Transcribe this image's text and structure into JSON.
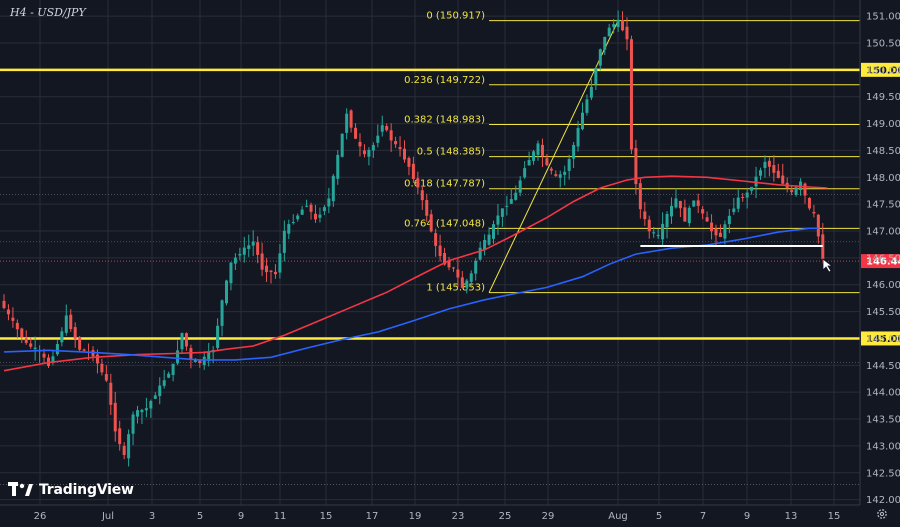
{
  "header": {
    "title": "H4 - USD/JPY"
  },
  "brand": {
    "name": "TradingView"
  },
  "icons": {
    "settings": "gear-icon",
    "cursor": "cursor-arrow-icon",
    "logo": "tradingview-logo-icon"
  },
  "colors": {
    "background": "#131722",
    "grid": "#2a2e39",
    "bull": "#26a69a",
    "bear": "#ef5350",
    "ma_red": "#f23645",
    "ma_blue": "#2962ff",
    "fib": "#f0e442",
    "level": "#ffeb3b",
    "axis_text": "#b2b5be",
    "price_tag": "#f23645"
  },
  "chart_data": {
    "type": "candlestick",
    "title": "H4 - USD/JPY",
    "ylim": [
      141.9,
      151.3
    ],
    "y_ticks": [
      "151.000",
      "150.500",
      "150.000",
      "149.500",
      "149.000",
      "148.500",
      "148.000",
      "147.500",
      "147.000",
      "146.500",
      "146.000",
      "145.500",
      "145.000",
      "144.500",
      "144.000",
      "143.500",
      "143.000",
      "142.500",
      "142.000"
    ],
    "x_ticks": [
      "26",
      "Jul",
      "3",
      "5",
      "9",
      "11",
      "15",
      "17",
      "19",
      "23",
      "25",
      "29",
      "Aug",
      "5",
      "7",
      "9",
      "13",
      "15"
    ],
    "horizontal_levels": [
      {
        "price": 150.0,
        "label": "150.000"
      },
      {
        "price": 145.0,
        "label": "145.000"
      }
    ],
    "fibonacci": {
      "high": 150.917,
      "low": 145.853,
      "levels": [
        {
          "ratio": "0",
          "price": "150.917"
        },
        {
          "ratio": "0.236",
          "price": "149.722"
        },
        {
          "ratio": "0.382",
          "price": "148.983"
        },
        {
          "ratio": "0.5",
          "price": "148.385"
        },
        {
          "ratio": "0.618",
          "price": "147.787"
        },
        {
          "ratio": "0.764",
          "price": "147.048"
        },
        {
          "ratio": "1",
          "price": "145.853"
        }
      ]
    },
    "last_price": {
      "value": 146.44,
      "label": "146.440"
    },
    "support_line": {
      "price": 146.72
    },
    "ma_red_path": [
      [
        0,
        144.4
      ],
      [
        10,
        144.55
      ],
      [
        20,
        144.65
      ],
      [
        30,
        144.7
      ],
      [
        38,
        144.72
      ],
      [
        45,
        144.74
      ],
      [
        50,
        144.8
      ],
      [
        56,
        144.86
      ],
      [
        63,
        145.06
      ],
      [
        70,
        145.3
      ],
      [
        78,
        145.58
      ],
      [
        86,
        145.86
      ],
      [
        94,
        146.2
      ],
      [
        100,
        146.45
      ],
      [
        108,
        146.65
      ],
      [
        114,
        146.9
      ],
      [
        122,
        147.25
      ],
      [
        128,
        147.55
      ],
      [
        134,
        147.8
      ],
      [
        140,
        147.95
      ],
      [
        144,
        148.0
      ],
      [
        150,
        148.02
      ],
      [
        158,
        148.0
      ],
      [
        166,
        147.93
      ],
      [
        174,
        147.86
      ],
      [
        181,
        147.82
      ],
      [
        185,
        147.8
      ]
    ],
    "ma_blue_path": [
      [
        0,
        144.75
      ],
      [
        10,
        144.78
      ],
      [
        20,
        144.74
      ],
      [
        28,
        144.7
      ],
      [
        36,
        144.65
      ],
      [
        44,
        144.6
      ],
      [
        52,
        144.6
      ],
      [
        60,
        144.65
      ],
      [
        68,
        144.82
      ],
      [
        76,
        144.98
      ],
      [
        84,
        145.12
      ],
      [
        92,
        145.33
      ],
      [
        100,
        145.55
      ],
      [
        108,
        145.72
      ],
      [
        114,
        145.82
      ],
      [
        122,
        145.95
      ],
      [
        130,
        146.15
      ],
      [
        136,
        146.38
      ],
      [
        142,
        146.57
      ],
      [
        150,
        146.68
      ],
      [
        158,
        146.74
      ],
      [
        166,
        146.85
      ],
      [
        174,
        146.98
      ],
      [
        181,
        147.05
      ],
      [
        183,
        147.05
      ]
    ],
    "price_path": [
      [
        0,
        145.7
      ],
      [
        3,
        145.3
      ],
      [
        6,
        144.9
      ],
      [
        9,
        144.75
      ],
      [
        11,
        144.5
      ],
      [
        13,
        144.9
      ],
      [
        15,
        145.4
      ],
      [
        18,
        144.8
      ],
      [
        21,
        144.7
      ],
      [
        24,
        144.2
      ],
      [
        26,
        143.3
      ],
      [
        28,
        142.8
      ],
      [
        30,
        143.6
      ],
      [
        33,
        143.7
      ],
      [
        36,
        144.1
      ],
      [
        39,
        144.5
      ],
      [
        41,
        145.1
      ],
      [
        43,
        144.6
      ],
      [
        45,
        144.55
      ],
      [
        48,
        144.8
      ],
      [
        50,
        145.7
      ],
      [
        52,
        146.4
      ],
      [
        54,
        146.6
      ],
      [
        57,
        146.8
      ],
      [
        59,
        146.3
      ],
      [
        62,
        146.2
      ],
      [
        64,
        147.0
      ],
      [
        67,
        147.3
      ],
      [
        69,
        147.5
      ],
      [
        71,
        147.2
      ],
      [
        74,
        147.6
      ],
      [
        76,
        148.4
      ],
      [
        78,
        149.2
      ],
      [
        80,
        148.7
      ],
      [
        82,
        148.4
      ],
      [
        84,
        148.6
      ],
      [
        86,
        149.0
      ],
      [
        88,
        148.7
      ],
      [
        90,
        148.5
      ],
      [
        92,
        148.2
      ],
      [
        94,
        147.8
      ],
      [
        96,
        147.3
      ],
      [
        98,
        146.7
      ],
      [
        100,
        146.4
      ],
      [
        102,
        146.3
      ],
      [
        104,
        145.95
      ],
      [
        106,
        146.2
      ],
      [
        108,
        146.7
      ],
      [
        110,
        146.9
      ],
      [
        112,
        147.3
      ],
      [
        114,
        147.5
      ],
      [
        116,
        147.7
      ],
      [
        118,
        148.2
      ],
      [
        121,
        148.6
      ],
      [
        123,
        148.2
      ],
      [
        125,
        148.0
      ],
      [
        127,
        148.1
      ],
      [
        129,
        148.6
      ],
      [
        131,
        149.2
      ],
      [
        133,
        149.7
      ],
      [
        135,
        150.4
      ],
      [
        137,
        150.8
      ],
      [
        139,
        150.9
      ],
      [
        141,
        150.6
      ],
      [
        142,
        148.5
      ],
      [
        143,
        147.9
      ],
      [
        144,
        147.4
      ],
      [
        146,
        147.0
      ],
      [
        148,
        146.9
      ],
      [
        150,
        147.3
      ],
      [
        152,
        147.6
      ],
      [
        154,
        147.2
      ],
      [
        156,
        147.6
      ],
      [
        158,
        147.3
      ],
      [
        160,
        147.0
      ],
      [
        162,
        146.9
      ],
      [
        164,
        147.3
      ],
      [
        166,
        147.6
      ],
      [
        168,
        147.7
      ],
      [
        170,
        148.0
      ],
      [
        172,
        148.3
      ],
      [
        174,
        148.1
      ],
      [
        176,
        147.9
      ],
      [
        178,
        147.7
      ],
      [
        180,
        147.9
      ],
      [
        182,
        147.4
      ],
      [
        183,
        147.3
      ],
      [
        184,
        146.9
      ],
      [
        185,
        146.5
      ]
    ]
  }
}
